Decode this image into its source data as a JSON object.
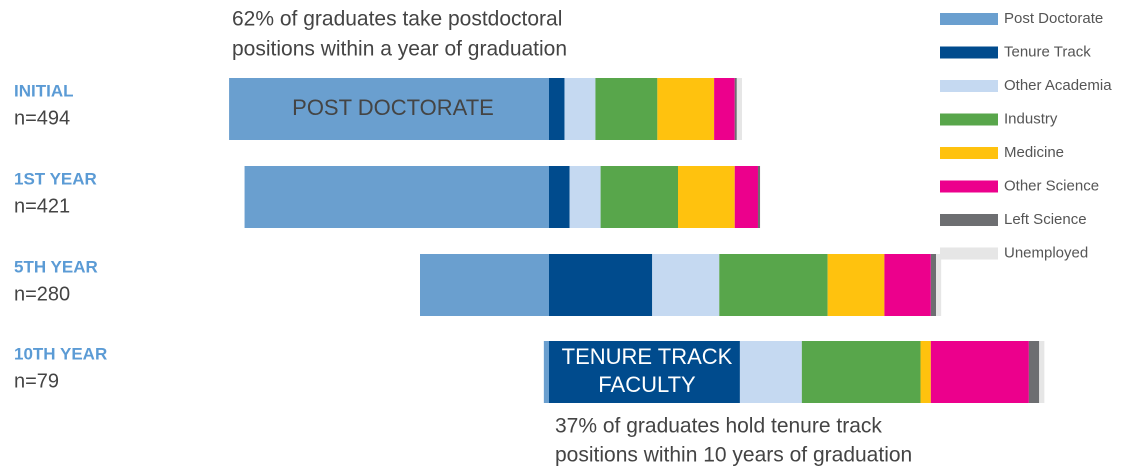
{
  "chart_data": {
    "type": "diverging-stacked-bar",
    "categories": [
      "INITIAL",
      "1ST YEAR",
      "5TH YEAR",
      "10TH YEAR"
    ],
    "sample_sizes": [
      "n=494",
      "n=421",
      "n=280",
      "n=79"
    ],
    "series": [
      {
        "name": "Post Doctorate",
        "color": "#6a9fcf",
        "values": [
          62,
          59,
          25,
          1
        ]
      },
      {
        "name": "Tenure Track",
        "color": "#004b8d",
        "values": [
          3,
          4,
          20,
          37
        ]
      },
      {
        "name": "Other Academia",
        "color": "#c5d9f1",
        "values": [
          6,
          6,
          13,
          12
        ]
      },
      {
        "name": "Industry",
        "color": "#58a64b",
        "values": [
          12,
          15,
          21,
          23
        ]
      },
      {
        "name": "Medicine",
        "color": "#ffc20e",
        "values": [
          11,
          11,
          11,
          2
        ]
      },
      {
        "name": "Other Science",
        "color": "#ec008c",
        "values": [
          4,
          4.5,
          9,
          19
        ]
      },
      {
        "name": "Left Science",
        "color": "#6d6e71",
        "values": [
          0.4,
          0.4,
          1,
          2
        ]
      },
      {
        "name": "Unemployed",
        "color": "#e6e6e6",
        "values": [
          1,
          0,
          1,
          1
        ]
      }
    ],
    "annotations": [
      {
        "lines": [
          "62% of graduates take postdoctoral",
          "positions within a year of graduation"
        ]
      },
      {
        "lines": [
          "37% of graduates hold tenure track",
          "positions within 10 years of graduation"
        ]
      }
    ],
    "bar_labels": [
      {
        "lines": [
          "POST DOCTORATE"
        ]
      },
      {
        "lines": [
          "TENURE TRACK",
          "FACULTY"
        ]
      }
    ]
  }
}
